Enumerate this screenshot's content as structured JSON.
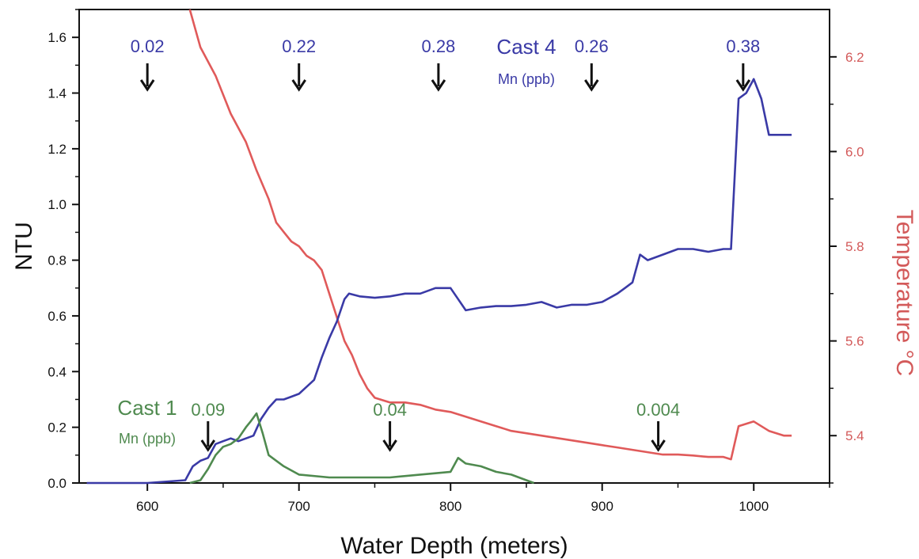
{
  "chart_data": {
    "type": "line",
    "xlabel": "Water Depth (meters)",
    "ylabel": "NTU",
    "y2label": "Temperature  °C",
    "xlim": [
      555,
      1050
    ],
    "ylim": [
      0.0,
      1.7
    ],
    "y2lim": [
      5.3,
      6.3
    ],
    "xticks": [
      600,
      700,
      800,
      900,
      1000
    ],
    "xtick_labels": [
      "600",
      "700",
      "800",
      "900",
      "1000"
    ],
    "yticks": [
      0.0,
      0.2,
      0.4,
      0.6,
      0.8,
      1.0,
      1.2,
      1.4,
      1.6
    ],
    "ytick_labels": [
      "0.0",
      "0.2",
      "0.4",
      "0.6",
      "0.8",
      "1.0",
      "1.2",
      "1.4",
      "1.6"
    ],
    "y2ticks": [
      5.4,
      5.6,
      5.8,
      6.0,
      6.2
    ],
    "y2tick_labels": [
      "5.4",
      "5.6",
      "5.8",
      "6.0",
      "6.2"
    ],
    "grid": false,
    "colors": {
      "cast4": "#3a3aa6",
      "cast1": "#4f8a4f",
      "temperature": "#e05a5a",
      "axis": "#111111",
      "temp_axis": "#d35a5a"
    },
    "series": [
      {
        "key": "temperature",
        "axis": "right",
        "x": [
          628,
          635,
          645,
          655,
          665,
          672,
          680,
          685,
          690,
          695,
          700,
          705,
          710,
          715,
          720,
          725,
          730,
          735,
          740,
          745,
          750,
          760,
          770,
          780,
          790,
          800,
          810,
          820,
          830,
          840,
          850,
          860,
          870,
          880,
          890,
          900,
          910,
          920,
          930,
          940,
          950,
          960,
          970,
          980,
          985,
          990,
          1000,
          1010,
          1020,
          1025
        ],
        "y": [
          6.3,
          6.22,
          6.16,
          6.08,
          6.02,
          5.96,
          5.9,
          5.85,
          5.83,
          5.81,
          5.8,
          5.78,
          5.77,
          5.75,
          5.7,
          5.65,
          5.6,
          5.57,
          5.53,
          5.5,
          5.48,
          5.47,
          5.47,
          5.465,
          5.455,
          5.45,
          5.44,
          5.43,
          5.42,
          5.41,
          5.405,
          5.4,
          5.395,
          5.39,
          5.385,
          5.38,
          5.375,
          5.37,
          5.365,
          5.36,
          5.36,
          5.358,
          5.355,
          5.355,
          5.35,
          5.42,
          5.43,
          5.41,
          5.4,
          5.4
        ]
      },
      {
        "key": "cast4",
        "axis": "left",
        "x": [
          560,
          600,
          625,
          630,
          635,
          640,
          645,
          650,
          655,
          660,
          665,
          670,
          675,
          680,
          685,
          690,
          695,
          700,
          710,
          715,
          720,
          725,
          730,
          733,
          740,
          750,
          760,
          770,
          780,
          790,
          800,
          805,
          810,
          820,
          830,
          840,
          850,
          860,
          870,
          880,
          890,
          900,
          910,
          915,
          920,
          925,
          930,
          940,
          950,
          960,
          970,
          980,
          985,
          990,
          995,
          1000,
          1005,
          1010,
          1020,
          1025
        ],
        "y": [
          0.0,
          0.0,
          0.01,
          0.06,
          0.08,
          0.09,
          0.14,
          0.15,
          0.16,
          0.15,
          0.16,
          0.17,
          0.23,
          0.27,
          0.3,
          0.3,
          0.31,
          0.32,
          0.37,
          0.45,
          0.52,
          0.58,
          0.66,
          0.68,
          0.67,
          0.665,
          0.67,
          0.68,
          0.68,
          0.7,
          0.7,
          0.66,
          0.62,
          0.63,
          0.635,
          0.635,
          0.64,
          0.65,
          0.63,
          0.64,
          0.64,
          0.65,
          0.68,
          0.7,
          0.72,
          0.82,
          0.8,
          0.82,
          0.84,
          0.84,
          0.83,
          0.84,
          0.84,
          1.38,
          1.4,
          1.45,
          1.38,
          1.25,
          1.25,
          1.25
        ]
      },
      {
        "key": "cast1",
        "axis": "left",
        "x": [
          628,
          635,
          640,
          645,
          650,
          655,
          660,
          665,
          668,
          672,
          676,
          680,
          685,
          690,
          700,
          720,
          740,
          760,
          780,
          800,
          805,
          810,
          820,
          830,
          840,
          850,
          855
        ],
        "y": [
          0.0,
          0.01,
          0.05,
          0.1,
          0.13,
          0.14,
          0.16,
          0.2,
          0.22,
          0.25,
          0.18,
          0.1,
          0.08,
          0.06,
          0.03,
          0.02,
          0.02,
          0.02,
          0.03,
          0.04,
          0.09,
          0.07,
          0.06,
          0.04,
          0.03,
          0.01,
          0.0
        ]
      }
    ],
    "annotations": {
      "cast4": {
        "title": "Cast 4",
        "subtitle": "Mn (ppb)",
        "values": [
          {
            "x": 600,
            "label": "0.02"
          },
          {
            "x": 700,
            "label": "0.22"
          },
          {
            "x": 792,
            "label": "0.28"
          },
          {
            "x": 893,
            "label": "0.26"
          },
          {
            "x": 993,
            "label": "0.38"
          }
        ]
      },
      "cast1": {
        "title": "Cast 1",
        "subtitle": "Mn (ppb)",
        "values": [
          {
            "x": 640,
            "label": "0.09"
          },
          {
            "x": 760,
            "label": "0.04"
          },
          {
            "x": 937,
            "label": "0.004"
          }
        ]
      }
    }
  }
}
